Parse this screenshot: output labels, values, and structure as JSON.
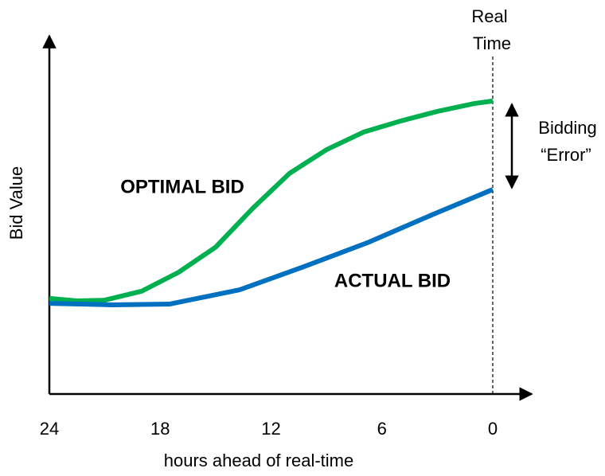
{
  "chart_data": {
    "type": "line",
    "x_label": "hours ahead of real-time",
    "y_label": "Bid Value",
    "annotations": [
      "Real",
      "Time",
      "Bidding",
      "“Error”"
    ],
    "xlim": [
      24,
      0
    ],
    "xticks": [
      24,
      18,
      12,
      6,
      0
    ],
    "ylim": [
      0,
      100
    ],
    "series": [
      {
        "name": "OPTIMAL BID",
        "color": "#00b050",
        "x": [
          24,
          22.5,
          21,
          19,
          17,
          15,
          13,
          11,
          9,
          7,
          5,
          3,
          1,
          0
        ],
        "values": [
          26.7,
          26,
          26.2,
          28.7,
          34,
          41,
          51.8,
          61.6,
          68.2,
          73.1,
          76.2,
          78.9,
          81.1,
          81.8
        ]
      },
      {
        "name": "ACTUAL BID",
        "color": "#0070c0",
        "x": [
          24,
          20.6,
          17.5,
          13.7,
          10.2,
          6.8,
          3.3,
          0
        ],
        "values": [
          25.3,
          24.9,
          25.1,
          29.1,
          35.6,
          42.2,
          50,
          57.1
        ]
      }
    ]
  }
}
